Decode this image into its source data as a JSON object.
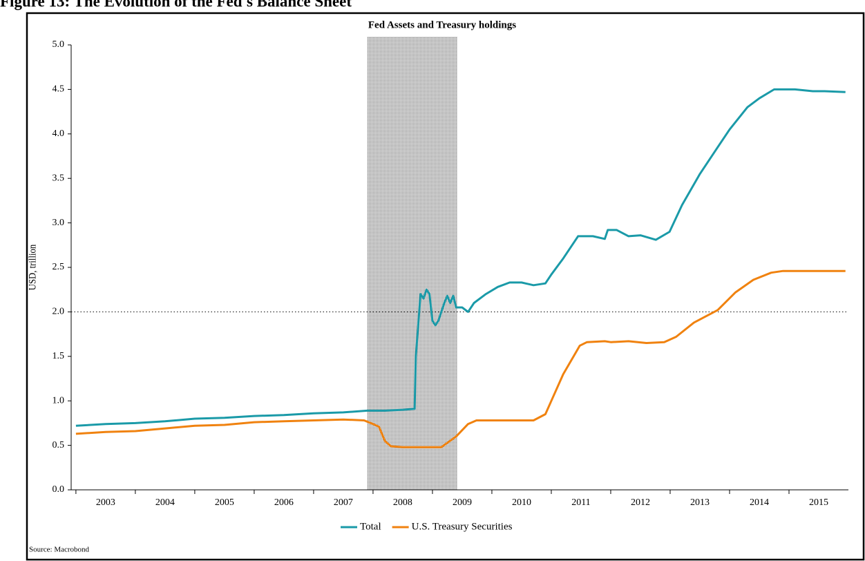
{
  "figure_caption": "Figure 13: The Evolution of the Fed's Balance Sheet",
  "chart_data": {
    "type": "line",
    "title": "Fed Assets and Treasury holdings",
    "ylabel": "USD, trillion",
    "source": "Source: Macrobond",
    "xlim": [
      2002.92,
      2016
    ],
    "xticks": [
      2003,
      2004,
      2005,
      2006,
      2007,
      2008,
      2009,
      2010,
      2011,
      2012,
      2013,
      2014,
      2015
    ],
    "ylim": [
      0,
      5
    ],
    "yticks": [
      {
        "value": 0,
        "label": "0.0"
      },
      0.5,
      {
        "value": 1,
        "label": "1.0"
      },
      1.5,
      {
        "value": 2,
        "label": "2.0"
      },
      2.5,
      {
        "value": 3,
        "label": "3.0"
      },
      3.5,
      {
        "value": 4,
        "label": "4.0"
      },
      4.5,
      {
        "value": 5,
        "label": "5.0"
      }
    ],
    "reference_line": 2,
    "shaded_range": [
      2007.9,
      2009.42
    ],
    "legend": "bottom",
    "series": [
      {
        "name": "Total",
        "color": "#1a9aa8",
        "x": [
          2003.0,
          2003.5,
          2004.0,
          2004.5,
          2005.0,
          2005.5,
          2006.0,
          2006.5,
          2007.0,
          2007.5,
          2007.9,
          2008.2,
          2008.5,
          2008.7,
          2008.72,
          2008.8,
          2008.85,
          2008.9,
          2008.95,
          2009.0,
          2009.05,
          2009.1,
          2009.2,
          2009.25,
          2009.3,
          2009.35,
          2009.4,
          2009.5,
          2009.6,
          2009.7,
          2009.9,
          2010.1,
          2010.3,
          2010.5,
          2010.7,
          2010.9,
          2011.0,
          2011.2,
          2011.45,
          2011.7,
          2011.9,
          2011.95,
          2012.1,
          2012.3,
          2012.5,
          2012.76,
          2012.99,
          2013.2,
          2013.5,
          2013.8,
          2014.0,
          2014.3,
          2014.5,
          2014.75,
          2015.1,
          2015.4,
          2015.6,
          2015.95
        ],
        "values": [
          0.72,
          0.74,
          0.75,
          0.77,
          0.8,
          0.81,
          0.83,
          0.84,
          0.86,
          0.87,
          0.89,
          0.89,
          0.9,
          0.91,
          1.5,
          2.2,
          2.15,
          2.25,
          2.2,
          1.9,
          1.85,
          1.9,
          2.1,
          2.18,
          2.1,
          2.18,
          2.05,
          2.05,
          2.0,
          2.1,
          2.2,
          2.28,
          2.33,
          2.33,
          2.3,
          2.32,
          2.42,
          2.6,
          2.85,
          2.85,
          2.82,
          2.92,
          2.92,
          2.85,
          2.86,
          2.81,
          2.9,
          3.2,
          3.55,
          3.85,
          4.05,
          4.3,
          4.4,
          4.5,
          4.5,
          4.48,
          4.48,
          4.47
        ]
      },
      {
        "name": "U.S. Treasury Securities",
        "color": "#f0820f",
        "x": [
          2003.0,
          2003.5,
          2004.0,
          2004.5,
          2005.0,
          2005.5,
          2006.0,
          2006.5,
          2007.0,
          2007.5,
          2007.85,
          2008.0,
          2008.1,
          2008.2,
          2008.3,
          2008.5,
          2009.0,
          2009.15,
          2009.4,
          2009.6,
          2009.74,
          2010.7,
          2010.9,
          2011.0,
          2011.2,
          2011.48,
          2011.6,
          2011.9,
          2012.0,
          2012.3,
          2012.6,
          2012.9,
          2013.1,
          2013.4,
          2013.8,
          2014.1,
          2014.4,
          2014.7,
          2014.9,
          2015.95
        ],
        "values": [
          0.63,
          0.65,
          0.66,
          0.69,
          0.72,
          0.73,
          0.76,
          0.77,
          0.78,
          0.79,
          0.78,
          0.74,
          0.71,
          0.55,
          0.49,
          0.48,
          0.48,
          0.48,
          0.6,
          0.74,
          0.78,
          0.78,
          0.85,
          1.0,
          1.3,
          1.62,
          1.66,
          1.67,
          1.66,
          1.67,
          1.65,
          1.66,
          1.72,
          1.88,
          2.02,
          2.22,
          2.36,
          2.44,
          2.46,
          2.46
        ]
      }
    ]
  }
}
